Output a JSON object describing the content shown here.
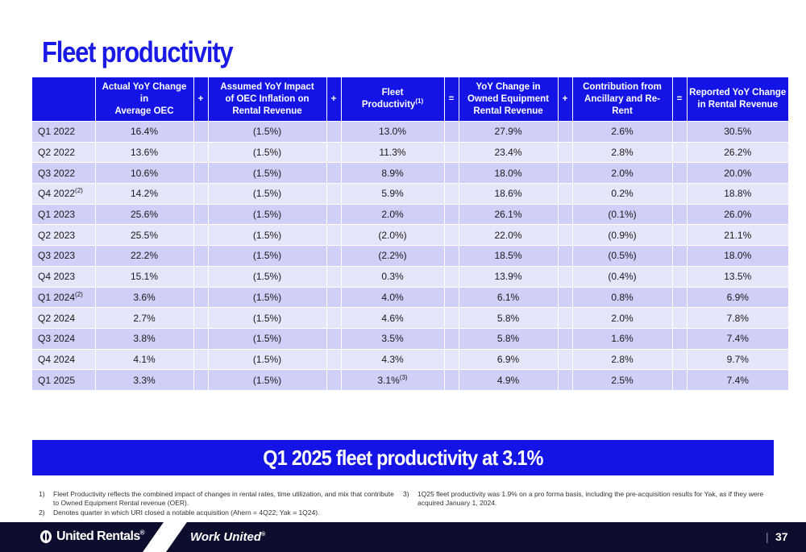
{
  "title": "Fleet productivity",
  "table": {
    "headers": {
      "actual_yoy": [
        "Actual YoY Change",
        "in",
        "Average OEC"
      ],
      "op1": "+",
      "assumed": [
        "Assumed YoY Impact",
        "of OEC Inflation on",
        "Rental  Revenue"
      ],
      "op2": "+",
      "fleet": [
        "Fleet",
        "Productivity"
      ],
      "fleet_sup": "(1)",
      "op3": "=",
      "yoy_owned": [
        "YoY Change in",
        "Owned Equipment",
        "Rental Revenue"
      ],
      "op4": "+",
      "contribution": [
        "Contribution from",
        "Ancillary and Re-Rent"
      ],
      "op5": "=",
      "reported": [
        "Reported YoY Change",
        "in Rental Revenue"
      ]
    },
    "rows": [
      {
        "period": "Q1 2022",
        "sup": "",
        "actual": "16.4%",
        "assumed": "(1.5%)",
        "fleet": "13.0%",
        "fleet_sup": "",
        "yoy": "27.9%",
        "contrib": "2.6%",
        "reported": "30.5%"
      },
      {
        "period": "Q2 2022",
        "sup": "",
        "actual": "13.6%",
        "assumed": "(1.5%)",
        "fleet": "11.3%",
        "fleet_sup": "",
        "yoy": "23.4%",
        "contrib": "2.8%",
        "reported": "26.2%"
      },
      {
        "period": "Q3 2022",
        "sup": "",
        "actual": "10.6%",
        "assumed": "(1.5%)",
        "fleet": "8.9%",
        "fleet_sup": "",
        "yoy": "18.0%",
        "contrib": "2.0%",
        "reported": "20.0%"
      },
      {
        "period": "Q4 2022",
        "sup": "(2)",
        "actual": "14.2%",
        "assumed": "(1.5%)",
        "fleet": "5.9%",
        "fleet_sup": "",
        "yoy": "18.6%",
        "contrib": "0.2%",
        "reported": "18.8%"
      },
      {
        "period": "Q1 2023",
        "sup": "",
        "actual": "25.6%",
        "assumed": "(1.5%)",
        "fleet": "2.0%",
        "fleet_sup": "",
        "yoy": "26.1%",
        "contrib": "(0.1%)",
        "reported": "26.0%"
      },
      {
        "period": "Q2 2023",
        "sup": "",
        "actual": "25.5%",
        "assumed": "(1.5%)",
        "fleet": "(2.0%)",
        "fleet_sup": "",
        "yoy": "22.0%",
        "contrib": "(0.9%)",
        "reported": "21.1%"
      },
      {
        "period": "Q3 2023",
        "sup": "",
        "actual": "22.2%",
        "assumed": "(1.5%)",
        "fleet": "(2.2%)",
        "fleet_sup": "",
        "yoy": "18.5%",
        "contrib": "(0.5%)",
        "reported": "18.0%"
      },
      {
        "period": "Q4 2023",
        "sup": "",
        "actual": "15.1%",
        "assumed": "(1.5%)",
        "fleet": "0.3%",
        "fleet_sup": "",
        "yoy": "13.9%",
        "contrib": "(0.4%)",
        "reported": "13.5%"
      },
      {
        "period": "Q1 2024",
        "sup": "(2)",
        "actual": "3.6%",
        "assumed": "(1.5%)",
        "fleet": "4.0%",
        "fleet_sup": "",
        "yoy": "6.1%",
        "contrib": "0.8%",
        "reported": "6.9%"
      },
      {
        "period": "Q2 2024",
        "sup": "",
        "actual": "2.7%",
        "assumed": "(1.5%)",
        "fleet": "4.6%",
        "fleet_sup": "",
        "yoy": "5.8%",
        "contrib": "2.0%",
        "reported": "7.8%"
      },
      {
        "period": "Q3 2024",
        "sup": "",
        "actual": "3.8%",
        "assumed": "(1.5%)",
        "fleet": "3.5%",
        "fleet_sup": "",
        "yoy": "5.8%",
        "contrib": "1.6%",
        "reported": "7.4%"
      },
      {
        "period": "Q4 2024",
        "sup": "",
        "actual": "4.1%",
        "assumed": "(1.5%)",
        "fleet": "4.3%",
        "fleet_sup": "",
        "yoy": "6.9%",
        "contrib": "2.8%",
        "reported": "9.7%"
      },
      {
        "period": "Q1 2025",
        "sup": "",
        "actual": "3.3%",
        "assumed": "(1.5%)",
        "fleet": "3.1%",
        "fleet_sup": "(3)",
        "yoy": "4.9%",
        "contrib": "2.5%",
        "reported": "7.4%"
      }
    ]
  },
  "banner": "Q1 2025 fleet productivity at 3.1%",
  "footnotes": [
    {
      "num": "1)",
      "text": "Fleet Productivity reflects the combined impact of changes in rental rates, time utilization, and mix that contribute to Owned Equipment Rental revenue (OER)."
    },
    {
      "num": "2)",
      "text": "Denotes quarter in which URI closed a notable acquisition (Ahern = 4Q22; Yak = 1Q24)."
    },
    {
      "num": "3)",
      "text": "1Q25 fleet productivity was 1.9% on a pro forma basis, including the pre-acquisition results for Yak, as if they were acquired January 1, 2024."
    }
  ],
  "footer": {
    "logo_text": "United Rentals",
    "logo_mark": "®",
    "tagline": "Work United",
    "tagline_mark": "®",
    "separator": "|",
    "page_number": "37"
  },
  "colors": {
    "brand_blue": "#1414e6",
    "row_dark": "#cfcff7",
    "row_light": "#e6e6fb",
    "footer_navy": "#0d0d2e"
  }
}
